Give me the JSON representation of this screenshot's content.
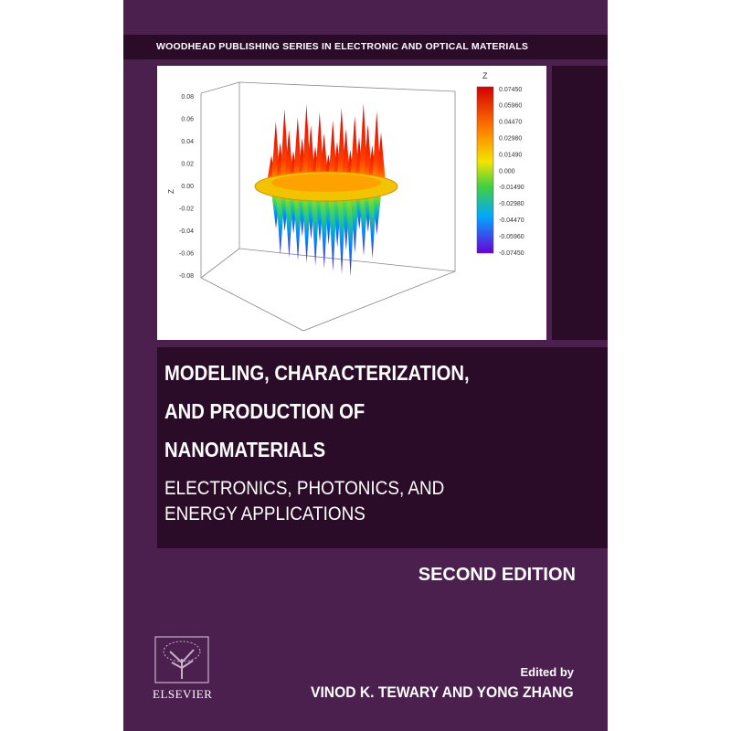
{
  "series": "WOODHEAD PUBLISHING SERIES IN ELECTRONIC AND OPTICAL MATERIALS",
  "figure": {
    "colorbar_title": "Z",
    "colorbar_labels": [
      "0.07450",
      "0.05960",
      "0.04470",
      "0.02980",
      "0.01490",
      "0.000",
      "-0.01490",
      "-0.02980",
      "-0.04470",
      "-0.05960",
      "-0.07450"
    ],
    "z_axis_title": "Z",
    "z_axis_labels": [
      "0.08",
      "0.06",
      "0.04",
      "0.02",
      "0.00",
      "-0.02",
      "-0.04",
      "-0.06",
      "-0.08"
    ]
  },
  "title_lines": [
    "MODELING, CHARACTERIZATION,",
    "AND PRODUCTION OF",
    "NANOMATERIALS"
  ],
  "subtitle_lines": [
    "ELECTRONICS, PHOTONICS, AND",
    "ENERGY APPLICATIONS"
  ],
  "edition": "SECOND EDITION",
  "edited_by": "Edited by",
  "editors": "VINOD K. TEWARY AND YONG ZHANG",
  "publisher": "ELSEVIER"
}
